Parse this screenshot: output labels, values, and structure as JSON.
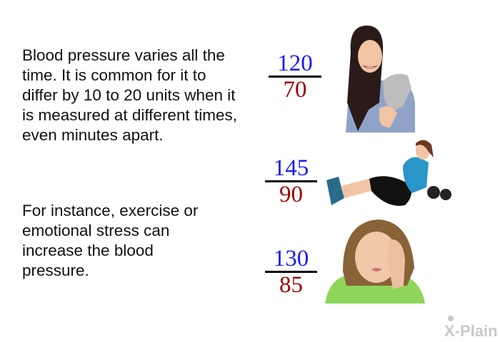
{
  "text": {
    "paragraph1": "Blood pressure varies all the time. It is common for it to differ by 10 to 20 units when it is measured at different times, even minutes apart.",
    "paragraph2": "For instance, exercise or emotional stress can increase the blood pressure."
  },
  "readings": [
    {
      "systolic": "120",
      "diastolic": "70",
      "illustration": "smiling-woman-with-kitten"
    },
    {
      "systolic": "145",
      "diastolic": "90",
      "illustration": "woman-exercising-with-dumbbell"
    },
    {
      "systolic": "130",
      "diastolic": "85",
      "illustration": "stressed-woman-holding-head"
    }
  ],
  "colors": {
    "systolic": "#1a1aff",
    "diastolic": "#a00000"
  },
  "logo": {
    "text": "X-Plain"
  }
}
